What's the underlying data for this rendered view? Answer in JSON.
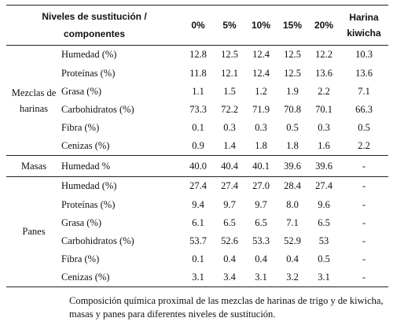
{
  "header": {
    "label_line1": "Niveles de sustitución /",
    "label_line2": "componentes",
    "levels": [
      "0%",
      "5%",
      "10%",
      "15%",
      "20%"
    ],
    "last_line1": "Harina",
    "last_line2": "kiwicha"
  },
  "groups": {
    "mezclas_line1": "Mezclas de",
    "mezclas_line2": "harinas",
    "masas": "Masas",
    "panes": "Panes"
  },
  "rows": {
    "mezclas": [
      {
        "name": "Humedad (%)",
        "v": [
          "12.8",
          "12.5",
          "12.4",
          "12.5",
          "12.2",
          "10.3"
        ]
      },
      {
        "name": "Proteínas (%)",
        "v": [
          "11.8",
          "12.1",
          "12.4",
          "12.5",
          "13.6",
          "13.6"
        ]
      },
      {
        "name": "Grasa (%)",
        "v": [
          "1.1",
          "1.5",
          "1.2",
          "1.9",
          "2.2",
          "7.1"
        ]
      },
      {
        "name": "Carbohidratos (%)",
        "v": [
          "73.3",
          "72.2",
          "71.9",
          "70.8",
          "70.1",
          "66.3"
        ]
      },
      {
        "name": "Fibra (%)",
        "v": [
          "0.1",
          "0.3",
          "0.3",
          "0.5",
          "0.3",
          "0.5"
        ]
      },
      {
        "name": "Cenizas (%)",
        "v": [
          "0.9",
          "1.4",
          "1.8",
          "1.8",
          "1.6",
          "2.2"
        ]
      }
    ],
    "masas": [
      {
        "name": "Humedad %",
        "v": [
          "40.0",
          "40.4",
          "40.1",
          "39.6",
          "39.6",
          "-"
        ]
      }
    ],
    "panes": [
      {
        "name": "Humedad (%)",
        "v": [
          "27.4",
          "27.4",
          "27.0",
          "28.4",
          "27.4",
          "-"
        ]
      },
      {
        "name": "Proteínas (%)",
        "v": [
          "9.4",
          "9.7",
          "9.7",
          "8.0",
          "9.6",
          "-"
        ]
      },
      {
        "name": "Grasa (%)",
        "v": [
          "6.1",
          "6.5",
          "6.5",
          "7.1",
          "6.5",
          "-"
        ]
      },
      {
        "name": "Carbohidratos (%)",
        "v": [
          "53.7",
          "52.6",
          "53.3",
          "52.9",
          "53",
          "-"
        ]
      },
      {
        "name": "Fibra (%)",
        "v": [
          "0.1",
          "0.4",
          "0.4",
          "0.4",
          "0.5",
          "-"
        ]
      },
      {
        "name": "Cenizas (%)",
        "v": [
          "3.1",
          "3.4",
          "3.1",
          "3.2",
          "3.1",
          "-"
        ]
      }
    ]
  },
  "caption": "Composición química proximal de las mezclas de harinas de trigo y de kiwicha, masas y panes para diferentes niveles de sustitución."
}
